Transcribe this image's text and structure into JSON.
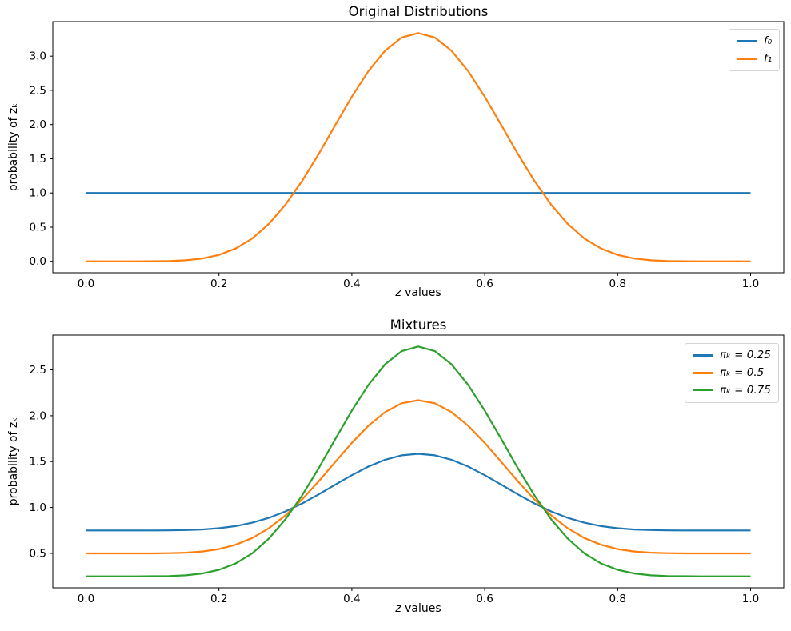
{
  "figure": {
    "background": "#ffffff",
    "text_color": "#000000",
    "spine_color": "#000000",
    "grid": false
  },
  "chart_data": [
    {
      "type": "line",
      "title": "Original Distributions",
      "xlabel": "z values",
      "ylabel": "probability of zₖ",
      "xlim": [
        -0.05,
        1.05
      ],
      "ylim": [
        -0.167,
        3.505
      ],
      "grid": false,
      "legend_position": "upper right",
      "xticks": {
        "values": [
          0.0,
          0.2,
          0.4,
          0.6,
          0.8,
          1.0
        ],
        "labels": [
          "0.0",
          "0.2",
          "0.4",
          "0.6",
          "0.8",
          "1.0"
        ]
      },
      "yticks": {
        "values": [
          0.0,
          0.5,
          1.0,
          1.5,
          2.0,
          2.5,
          3.0
        ],
        "labels": [
          "0.0",
          "0.5",
          "1.0",
          "1.5",
          "2.0",
          "2.5",
          "3.0"
        ]
      },
      "x": [
        0,
        0.025,
        0.05,
        0.075,
        0.1,
        0.125,
        0.15,
        0.175,
        0.2,
        0.225,
        0.25,
        0.275,
        0.3,
        0.325,
        0.35,
        0.375,
        0.4,
        0.425,
        0.45,
        0.475,
        0.5,
        0.525,
        0.55,
        0.575,
        0.6,
        0.625,
        0.65,
        0.675,
        0.7,
        0.725,
        0.75,
        0.775,
        0.8,
        0.825,
        0.85,
        0.875,
        0.9,
        0.925,
        0.95,
        0.975,
        1
      ],
      "series": [
        {
          "id": "f0",
          "name": "f₀",
          "color": "#1f77b4",
          "values": [
            1,
            1,
            1,
            1,
            1,
            1,
            1,
            1,
            1,
            1,
            1,
            1,
            1,
            1,
            1,
            1,
            1,
            1,
            1,
            1,
            1,
            1,
            1,
            1,
            1,
            1,
            1,
            1,
            1,
            1,
            1,
            1,
            1,
            1,
            1,
            1,
            1,
            1,
            1,
            1,
            1
          ]
        },
        {
          "id": "f1",
          "name": "f₁",
          "color": "#ff7f0e",
          "values": [
            0,
            0,
            0,
            0,
            0.001,
            0.004,
            0.015,
            0.041,
            0.094,
            0.187,
            0.334,
            0.546,
            0.828,
            1.174,
            1.57,
            1.992,
            2.408,
            2.783,
            3.081,
            3.272,
            3.338,
            3.272,
            3.081,
            2.783,
            2.408,
            1.992,
            1.57,
            1.174,
            0.828,
            0.546,
            0.334,
            0.187,
            0.094,
            0.041,
            0.015,
            0.004,
            0.001,
            0,
            0,
            0,
            0
          ]
        }
      ]
    },
    {
      "type": "line",
      "title": "Mixtures",
      "xlabel": "z values",
      "ylabel": "probability of zₖ",
      "xlim": [
        -0.05,
        1.05
      ],
      "ylim": [
        0.125,
        2.879
      ],
      "grid": false,
      "legend_position": "upper right",
      "xticks": {
        "values": [
          0.0,
          0.2,
          0.4,
          0.6,
          0.8,
          1.0
        ],
        "labels": [
          "0.0",
          "0.2",
          "0.4",
          "0.6",
          "0.8",
          "1.0"
        ]
      },
      "yticks": {
        "values": [
          0.5,
          1.0,
          1.5,
          2.0,
          2.5
        ],
        "labels": [
          "0.5",
          "1.0",
          "1.5",
          "2.0",
          "2.5"
        ]
      },
      "x": [
        0,
        0.025,
        0.05,
        0.075,
        0.1,
        0.125,
        0.15,
        0.175,
        0.2,
        0.225,
        0.25,
        0.275,
        0.3,
        0.325,
        0.35,
        0.375,
        0.4,
        0.425,
        0.45,
        0.475,
        0.5,
        0.525,
        0.55,
        0.575,
        0.6,
        0.625,
        0.65,
        0.675,
        0.7,
        0.725,
        0.75,
        0.775,
        0.8,
        0.825,
        0.85,
        0.875,
        0.9,
        0.925,
        0.95,
        0.975,
        1
      ],
      "series": [
        {
          "id": "pi-0-25",
          "name": "πₖ = 0.25",
          "color": "#1f77b4",
          "values": [
            0.75,
            0.75,
            0.75,
            0.75,
            0.75,
            0.751,
            0.754,
            0.76,
            0.774,
            0.797,
            0.834,
            0.887,
            0.957,
            1.044,
            1.143,
            1.248,
            1.352,
            1.446,
            1.52,
            1.568,
            1.585,
            1.568,
            1.52,
            1.446,
            1.352,
            1.248,
            1.143,
            1.044,
            0.957,
            0.887,
            0.834,
            0.797,
            0.774,
            0.76,
            0.754,
            0.751,
            0.75,
            0.75,
            0.75,
            0.75,
            0.75
          ]
        },
        {
          "id": "pi-0-5",
          "name": "πₖ = 0.5",
          "color": "#ff7f0e",
          "values": [
            0.5,
            0.5,
            0.5,
            0.5,
            0.5,
            0.502,
            0.508,
            0.521,
            0.547,
            0.594,
            0.667,
            0.773,
            0.914,
            1.087,
            1.285,
            1.496,
            1.704,
            1.892,
            2.04,
            2.136,
            2.169,
            2.136,
            2.04,
            1.892,
            1.704,
            1.496,
            1.285,
            1.087,
            0.914,
            0.773,
            0.667,
            0.594,
            0.547,
            0.521,
            0.508,
            0.502,
            0.5,
            0.5,
            0.5,
            0.5,
            0.5
          ]
        },
        {
          "id": "pi-0-75",
          "name": "πₖ = 0.75",
          "color": "#2ca02c",
          "values": [
            0.25,
            0.25,
            0.25,
            0.25,
            0.251,
            0.253,
            0.261,
            0.281,
            0.321,
            0.39,
            0.501,
            0.66,
            0.871,
            1.131,
            1.428,
            1.744,
            2.056,
            2.337,
            2.561,
            2.704,
            2.754,
            2.704,
            2.561,
            2.337,
            2.056,
            1.744,
            1.428,
            1.131,
            0.871,
            0.66,
            0.501,
            0.39,
            0.321,
            0.281,
            0.261,
            0.253,
            0.251,
            0.25,
            0.25,
            0.25,
            0.25
          ]
        }
      ]
    }
  ]
}
